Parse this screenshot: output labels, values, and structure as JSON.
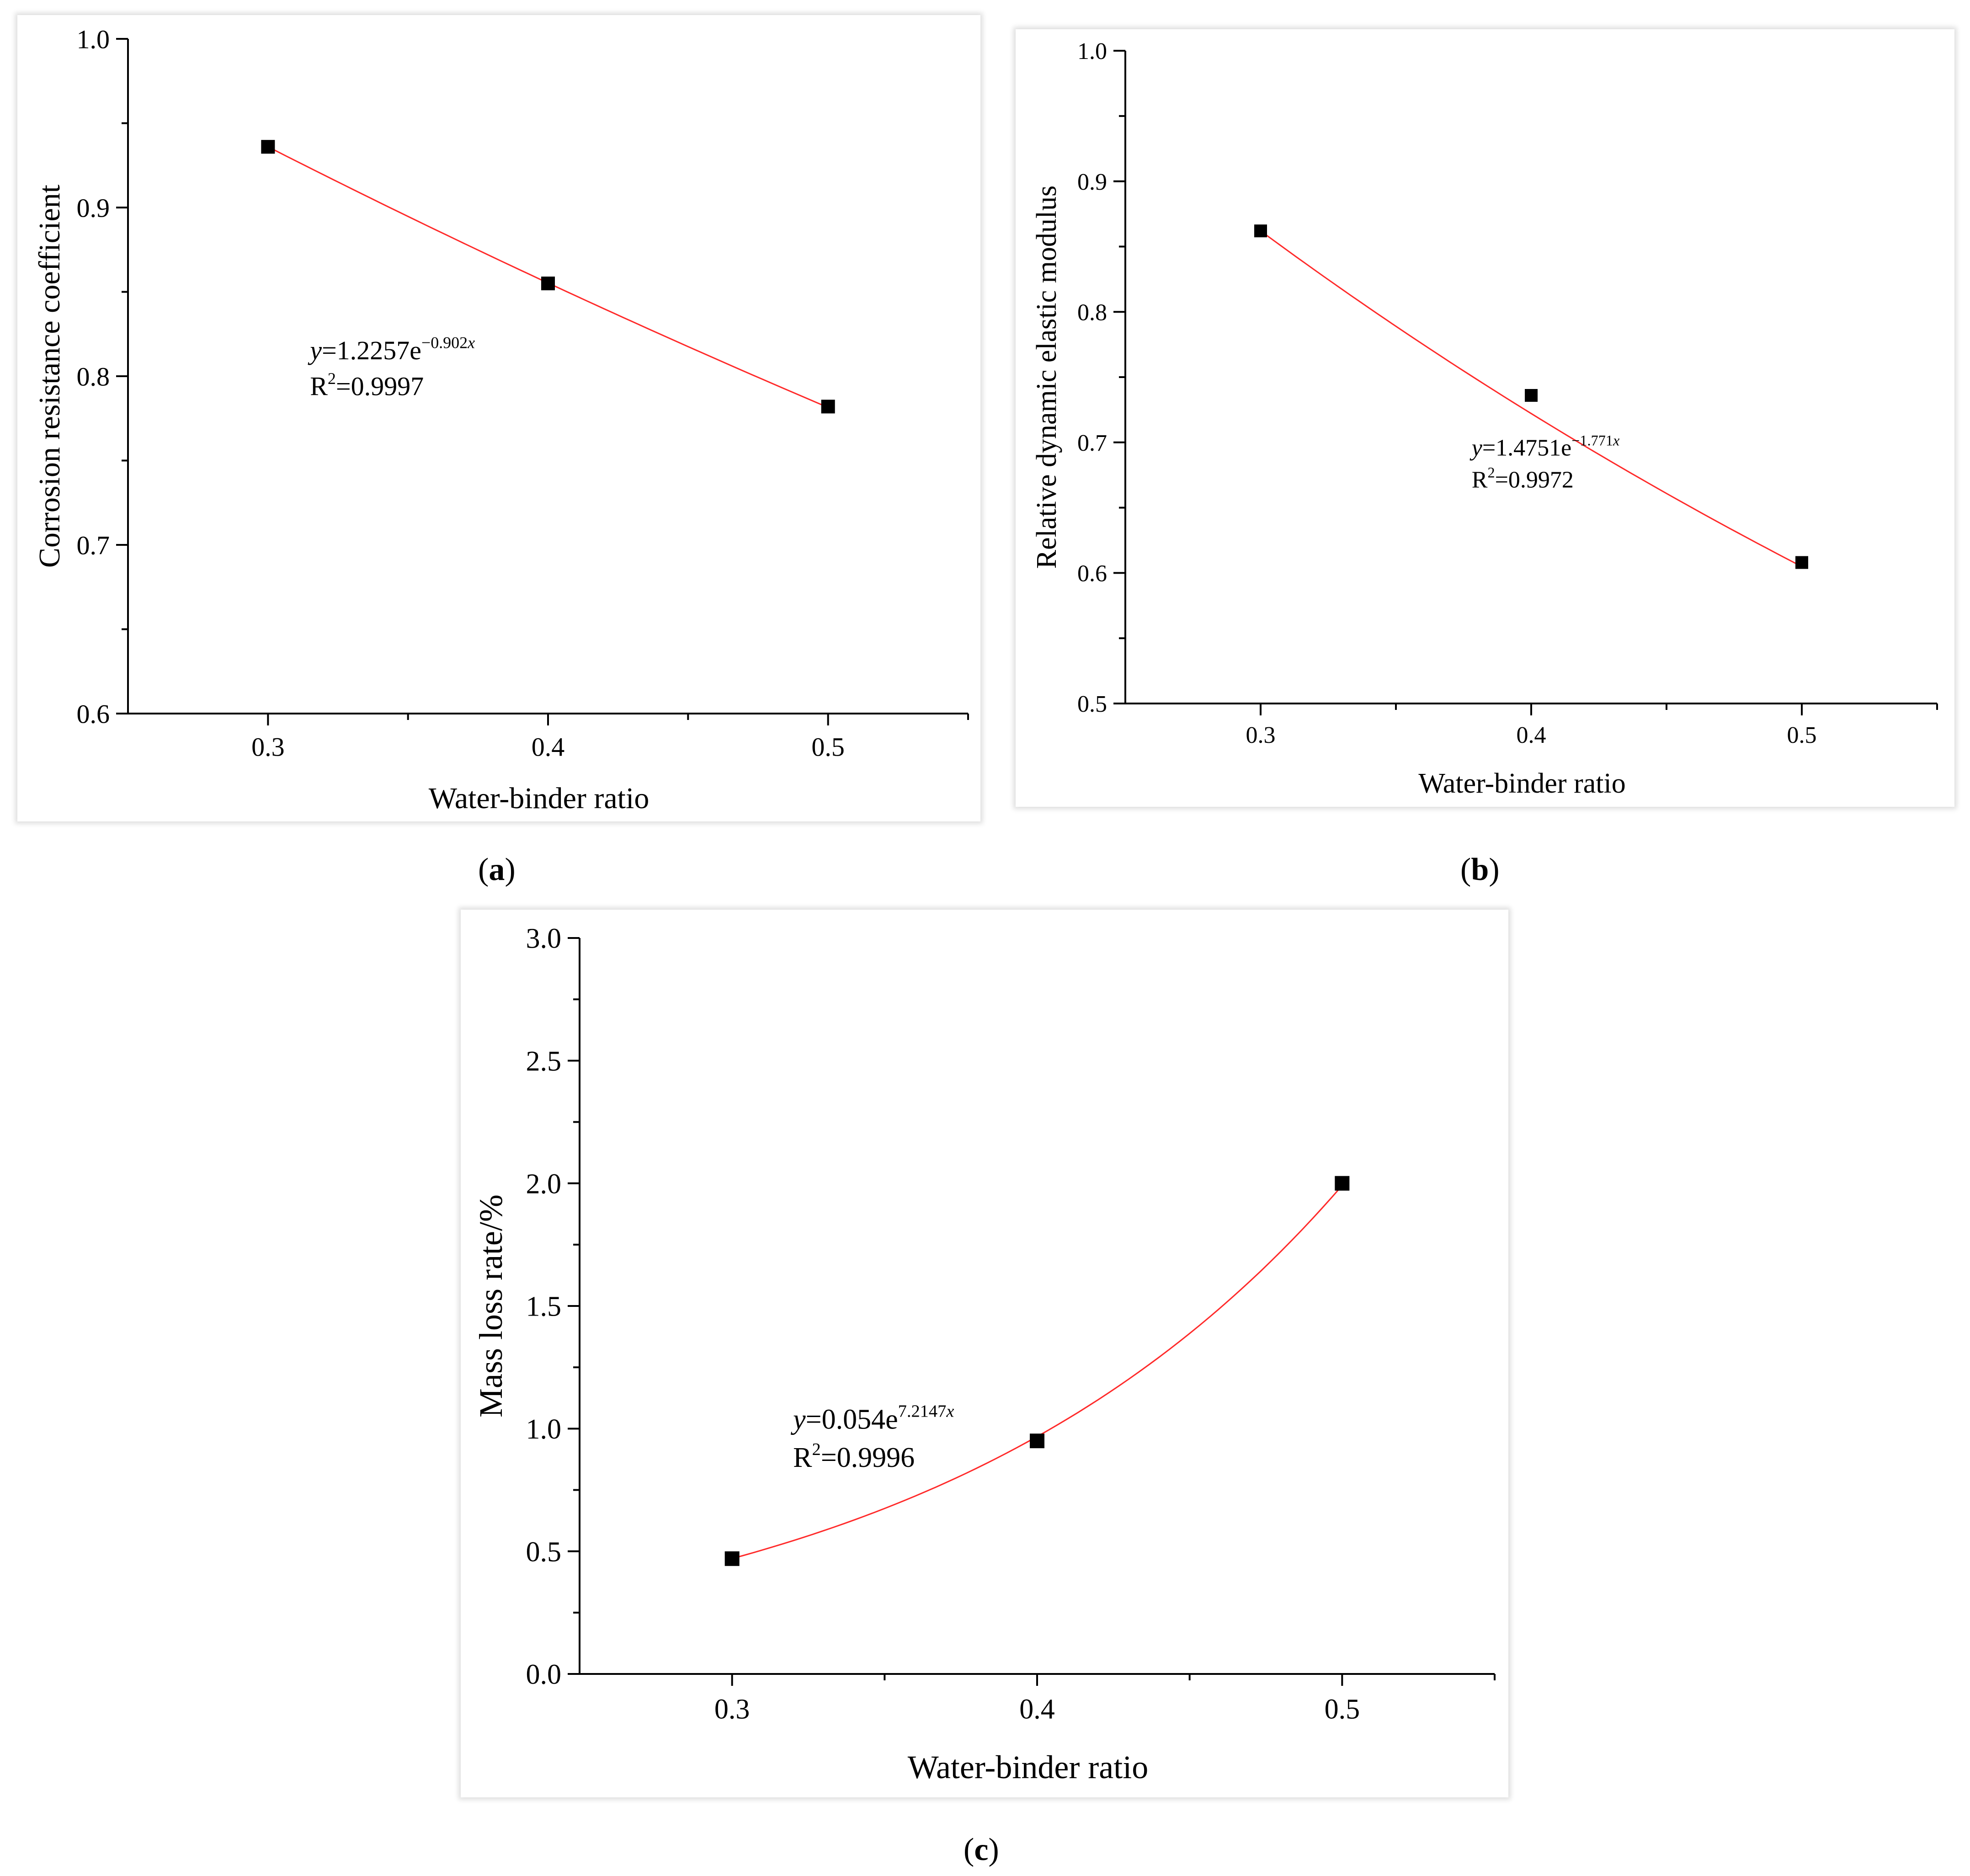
{
  "colors": {
    "fit_line": "#ff2a2a",
    "marker": "#000000",
    "axis": "#000000",
    "background": "#ffffff"
  },
  "chart_data": [
    {
      "id": "a",
      "type": "scatter",
      "caption": "a",
      "xlabel": "Water-binder ratio",
      "ylabel": "Corrosion resistance coefficient",
      "xlim": [
        0.25,
        0.55
      ],
      "ylim": [
        0.6,
        1.0
      ],
      "xticks": [
        0.3,
        0.4,
        0.5
      ],
      "xtick_labels": [
        "0.3",
        "0.4",
        "0.5"
      ],
      "yticks": [
        0.6,
        0.7,
        0.8,
        0.9,
        1.0
      ],
      "ytick_labels": [
        "0.6",
        "0.7",
        "0.8",
        "0.9",
        "1.0"
      ],
      "x": [
        0.3,
        0.4,
        0.5
      ],
      "y": [
        0.936,
        0.855,
        0.782
      ],
      "fit": {
        "model": "exponential",
        "a": 1.2257,
        "b": -0.902
      },
      "equation": {
        "y": "y",
        "eq": "=1.2257e",
        "exp": "−0.902",
        "var": "x"
      },
      "r2": {
        "r": "R",
        "sup": "2",
        "value": "=0.9997"
      },
      "annotation_anchor": [
        0.315,
        0.81
      ]
    },
    {
      "id": "b",
      "type": "scatter",
      "caption": "b",
      "xlabel": "Water-binder ratio",
      "ylabel": "Relative dynamic elastic modulus",
      "xlim": [
        0.25,
        0.55
      ],
      "ylim": [
        0.5,
        1.0
      ],
      "xticks": [
        0.3,
        0.4,
        0.5
      ],
      "xtick_labels": [
        "0.3",
        "0.4",
        "0.5"
      ],
      "yticks": [
        0.5,
        0.6,
        0.7,
        0.8,
        0.9,
        1.0
      ],
      "ytick_labels": [
        "0.5",
        "0.6",
        "0.7",
        "0.8",
        "0.9",
        "1.0"
      ],
      "x": [
        0.3,
        0.4,
        0.5
      ],
      "y": [
        0.862,
        0.736,
        0.608
      ],
      "fit": {
        "model": "exponential",
        "a": 1.4751,
        "b": -1.771
      },
      "equation": {
        "y": "y",
        "eq": "=1.4751e",
        "exp": "−1.771",
        "var": "x"
      },
      "r2": {
        "r": "R",
        "sup": "2",
        "value": "=0.9972"
      },
      "annotation_anchor": [
        0.378,
        0.69
      ]
    },
    {
      "id": "c",
      "type": "scatter",
      "caption": "c",
      "xlabel": "Water-binder ratio",
      "ylabel": "Mass loss rate/%",
      "xlim": [
        0.25,
        0.55
      ],
      "ylim": [
        0.0,
        3.0
      ],
      "xticks": [
        0.3,
        0.4,
        0.5
      ],
      "xtick_labels": [
        "0.3",
        "0.4",
        "0.5"
      ],
      "yticks": [
        0.0,
        0.5,
        1.0,
        1.5,
        2.0,
        2.5,
        3.0
      ],
      "ytick_labels": [
        "0.0",
        "0.5",
        "1.0",
        "1.5",
        "2.0",
        "2.5",
        "3.0"
      ],
      "x": [
        0.3,
        0.4,
        0.5
      ],
      "y": [
        0.47,
        0.95,
        2.0
      ],
      "fit": {
        "model": "exponential",
        "a": 0.054,
        "b": 7.2147
      },
      "equation": {
        "y": "y",
        "eq": "=0.054e",
        "exp": "7.2147",
        "var": "x"
      },
      "r2": {
        "r": "R",
        "sup": "2",
        "value": "=0.9996"
      },
      "annotation_anchor": [
        0.32,
        1.0
      ]
    }
  ]
}
